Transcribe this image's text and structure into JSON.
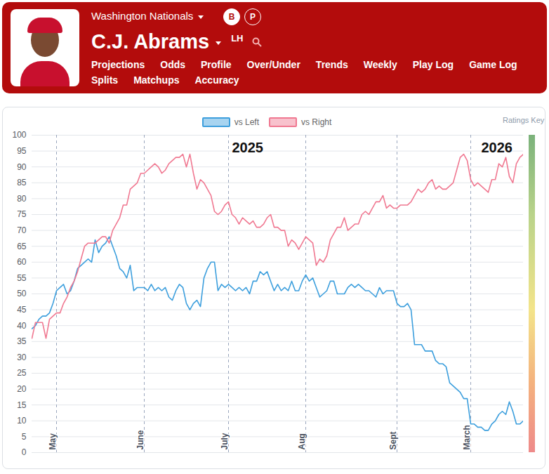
{
  "header": {
    "team": "Washington Nationals",
    "badges": [
      "B",
      "P"
    ],
    "player": "C.J. Abrams",
    "hand": "LH",
    "nav": [
      [
        "Projections",
        "Odds",
        "Profile",
        "Over/Under",
        "Trends",
        "Weekly",
        "Play Log",
        "Game Log"
      ],
      [
        "Splits",
        "Matchups",
        "Accuracy"
      ]
    ],
    "active": "Trends"
  },
  "ratings_key": "Ratings Key",
  "chart_data": {
    "type": "line",
    "categories": [
      null,
      null,
      null,
      null,
      null,
      null,
      null,
      "May",
      null,
      null,
      null,
      null,
      null,
      null,
      null,
      null,
      null,
      null,
      null,
      null,
      null,
      null,
      null,
      null,
      null,
      null,
      null,
      null,
      null,
      null,
      null,
      null,
      "June",
      null,
      null,
      null,
      null,
      null,
      null,
      null,
      null,
      null,
      null,
      null,
      null,
      null,
      null,
      null,
      null,
      null,
      null,
      null,
      null,
      null,
      null,
      null,
      "July",
      null,
      null,
      null,
      null,
      null,
      null,
      null,
      null,
      null,
      null,
      null,
      null,
      null,
      null,
      null,
      null,
      null,
      null,
      null,
      null,
      null,
      "Aug",
      null,
      null,
      null,
      null,
      null,
      null,
      null,
      null,
      null,
      null,
      null,
      null,
      null,
      null,
      null,
      null,
      null,
      null,
      null,
      null,
      null,
      null,
      null,
      null,
      null,
      "Sept",
      null,
      null,
      null,
      null,
      null,
      null,
      null,
      null,
      null,
      null,
      null,
      null,
      null,
      null,
      null,
      null,
      null,
      null,
      null,
      null,
      "March",
      null,
      null,
      null,
      null,
      null,
      null,
      null,
      null,
      null,
      null,
      null,
      null,
      null,
      null,
      null
    ],
    "series": [
      {
        "name": "vs Left",
        "color": "#3d9fdd",
        "values": [
          39,
          40,
          42,
          43,
          43,
          44,
          47,
          51,
          52,
          53,
          50,
          51,
          54,
          58,
          59,
          60,
          61,
          60,
          67,
          63,
          65,
          66,
          68,
          65,
          62,
          58,
          57,
          55,
          59,
          51,
          52,
          52,
          52,
          51,
          53,
          51,
          52,
          51,
          52,
          49,
          48,
          51,
          53,
          52,
          47,
          45,
          47,
          48,
          46,
          55,
          58,
          60,
          60,
          51,
          53,
          52,
          53,
          52,
          51,
          52,
          51,
          52,
          50,
          54,
          54,
          57,
          56,
          57,
          54,
          51,
          53,
          51,
          52,
          51,
          54,
          51,
          51,
          54,
          56,
          54,
          55,
          52,
          49,
          50,
          51,
          54,
          54,
          50,
          50,
          50,
          52,
          53,
          52,
          53,
          52,
          51,
          51,
          50,
          49,
          52,
          50,
          51,
          51,
          51,
          47,
          46,
          46,
          47,
          45,
          34,
          34,
          34,
          32,
          32,
          32,
          29,
          28,
          28,
          27,
          22,
          21,
          20,
          19,
          17,
          17,
          9,
          9,
          8,
          8,
          7,
          7,
          9,
          10,
          12,
          13,
          12,
          16,
          13,
          9,
          9,
          10
        ]
      },
      {
        "name": "vs Right",
        "color": "#f07891",
        "values": [
          36,
          41,
          41,
          41,
          36,
          42,
          43,
          44,
          44,
          47,
          49,
          52,
          54,
          57,
          61,
          65,
          66,
          66,
          66,
          67,
          68,
          68,
          66,
          70,
          72,
          74,
          78,
          78,
          83,
          84,
          85,
          88,
          88,
          89,
          90,
          91,
          90,
          88,
          89,
          91,
          92,
          93,
          93,
          94,
          90,
          94,
          88,
          83,
          86,
          85,
          83,
          81,
          76,
          75,
          76,
          78,
          79,
          75,
          74,
          72,
          74,
          73,
          72,
          73,
          71,
          71,
          72,
          74,
          75,
          71,
          71,
          70,
          70,
          65,
          67,
          66,
          64,
          66,
          68,
          67,
          66,
          59,
          61,
          60,
          62,
          67,
          69,
          71,
          71,
          74,
          70,
          71,
          72,
          72,
          75,
          76,
          75,
          77,
          79,
          79,
          81,
          77,
          78,
          77,
          77,
          78,
          78,
          78,
          79,
          81,
          83,
          82,
          83,
          85,
          86,
          83,
          84,
          83,
          83,
          84,
          85,
          89,
          93,
          94,
          92,
          86,
          84,
          85,
          84,
          83,
          82,
          86,
          86,
          91,
          90,
          93,
          87,
          85,
          91,
          93,
          94
        ]
      }
    ],
    "ylim": [
      0,
      100
    ],
    "yticks": [
      0,
      5,
      10,
      15,
      20,
      25,
      30,
      35,
      40,
      45,
      50,
      55,
      60,
      65,
      70,
      75,
      80,
      85,
      90,
      95,
      100
    ],
    "grid": true,
    "legend": "top",
    "annotations": [
      {
        "text": "2025",
        "x": 57,
        "y": 96
      },
      {
        "text": "2026",
        "x": 128,
        "y": 96
      }
    ]
  }
}
